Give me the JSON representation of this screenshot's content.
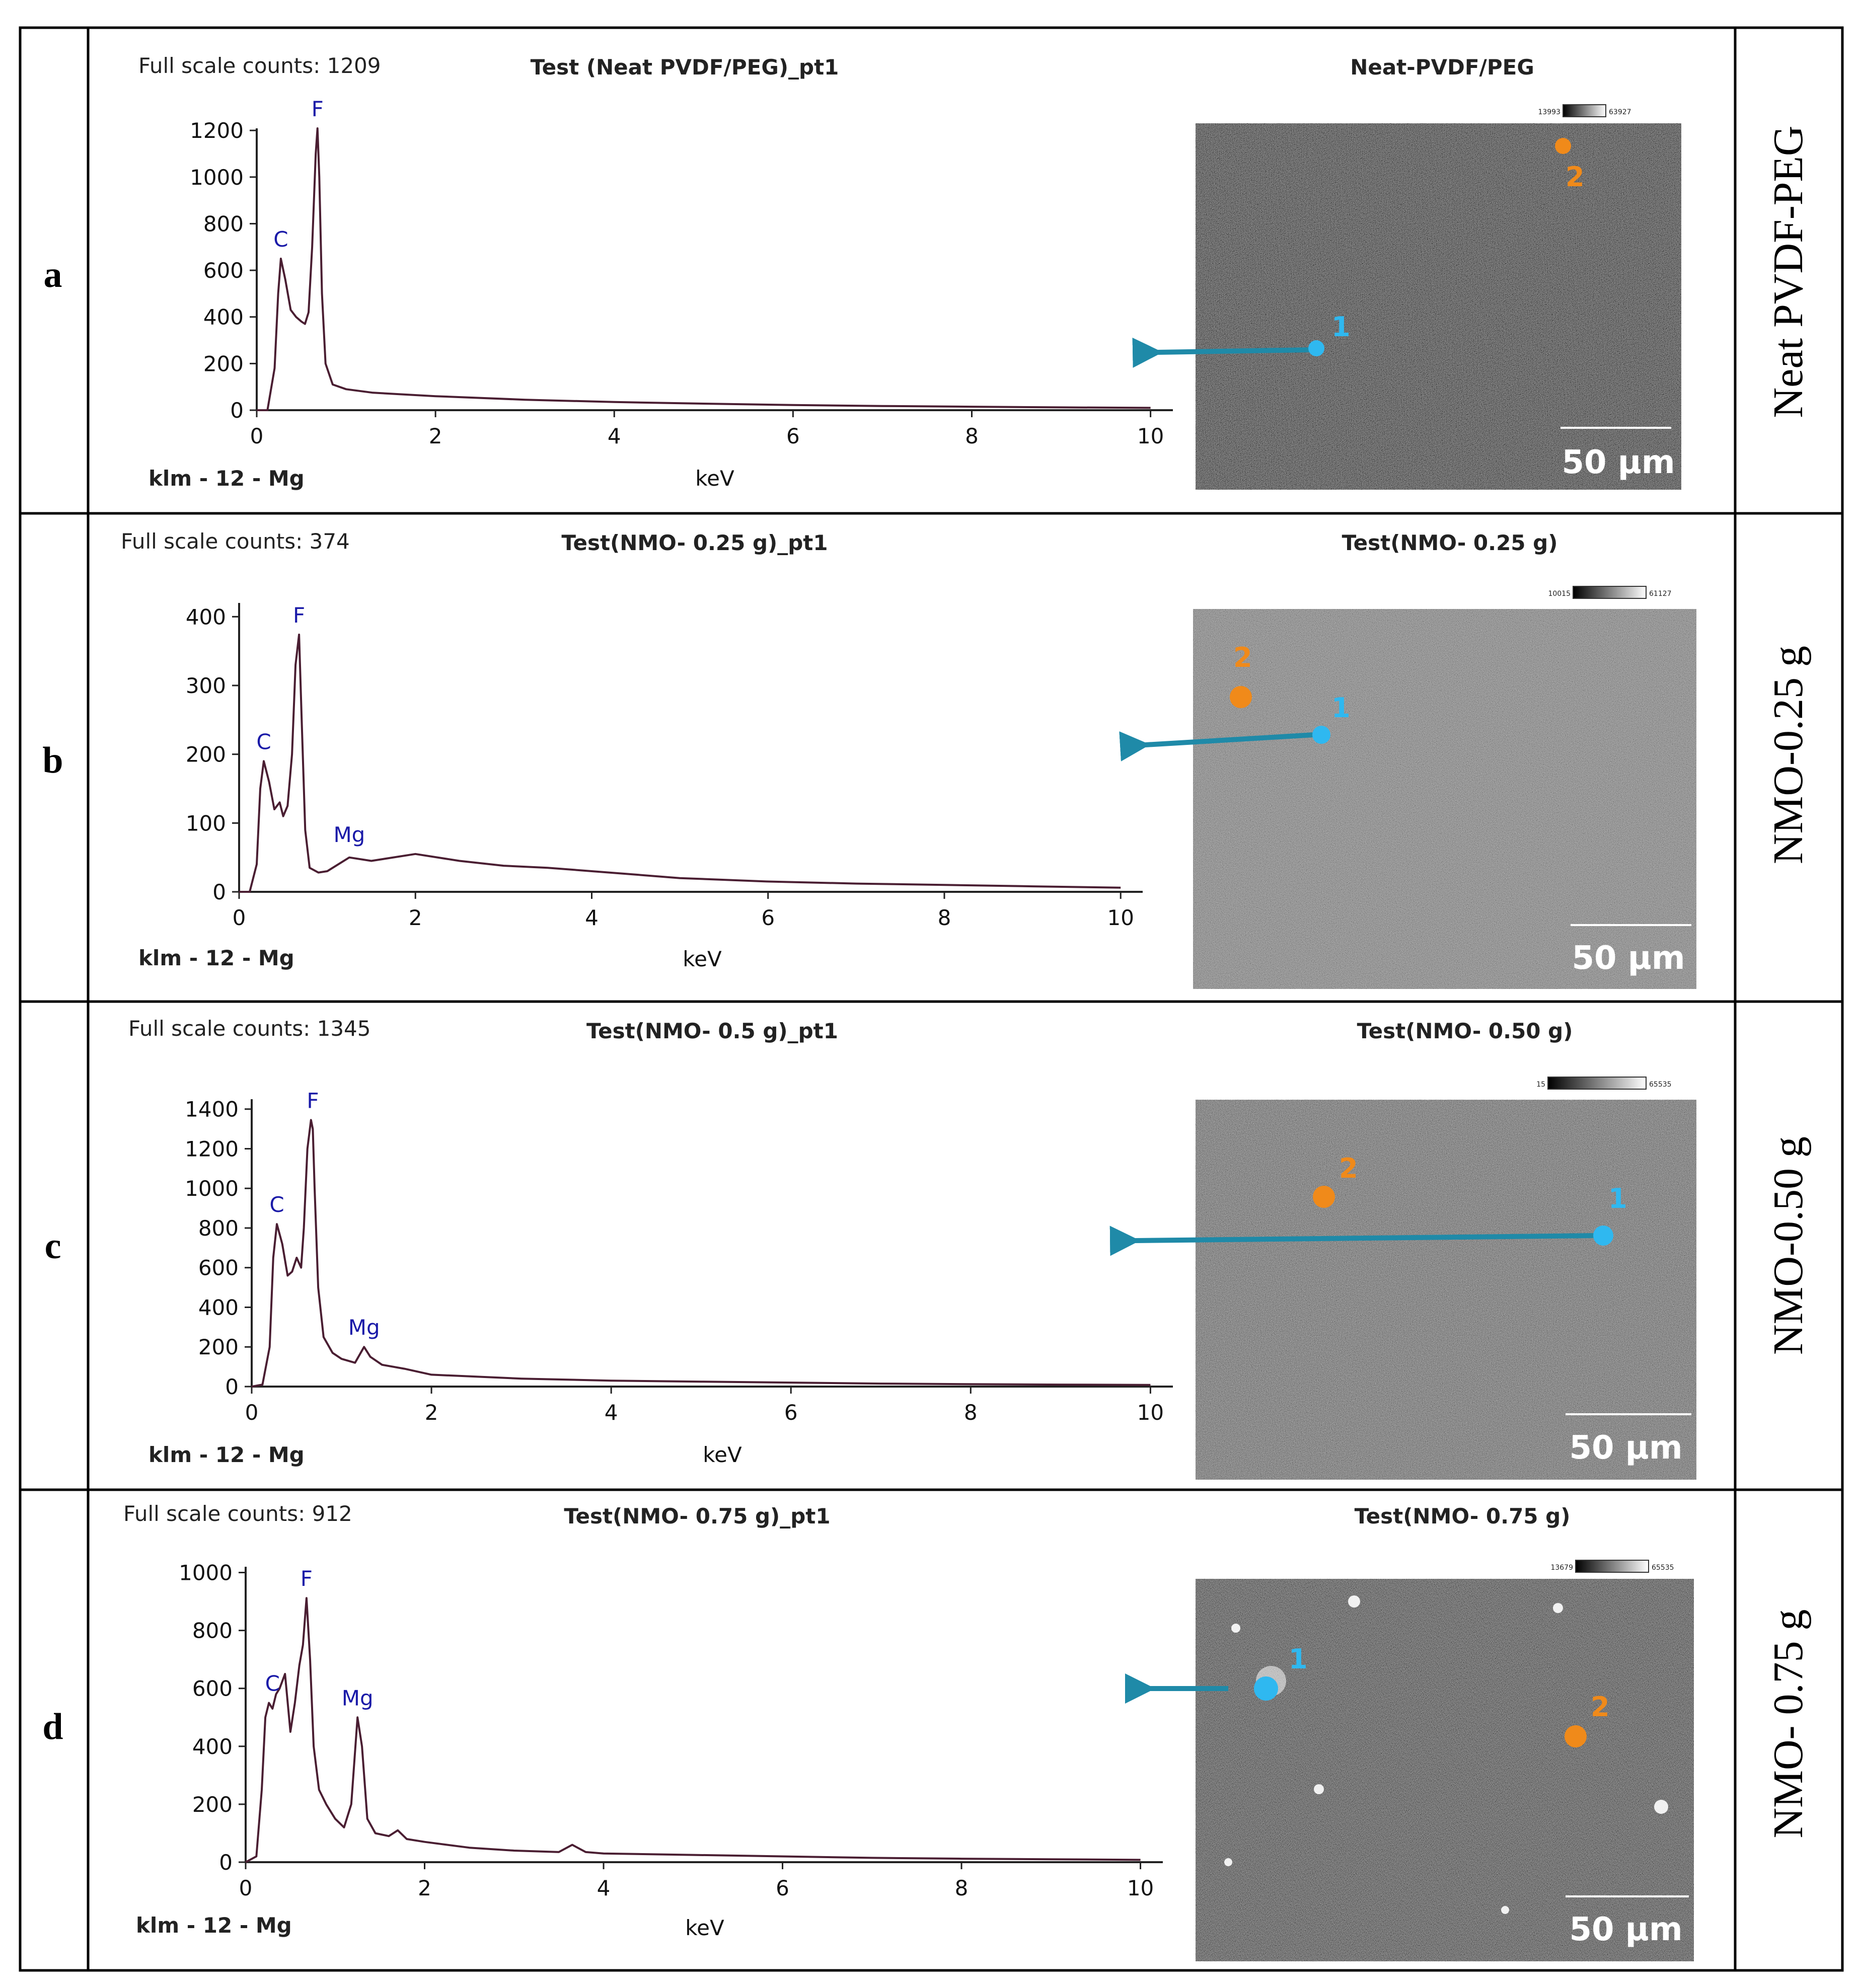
{
  "colors": {
    "spectrum_line": "#4a1e32",
    "axis": "#222222",
    "peak_label": "#1a1aa8",
    "arrow": "#1f8aa8",
    "point1": "#2fb8f0",
    "point2": "#f08a1a"
  },
  "chart_data": [
    {
      "type": "line",
      "row_letter": "a",
      "side_label": "Neat PVDF-PEG",
      "full_scale_counts": "Full scale counts: 1209",
      "test_title": "Test (Neat PVDF/PEG)_pt1",
      "image_title": "Neat-PVDF/PEG",
      "xlabel": "keV",
      "footer": "klm - 12 - Mg",
      "xlim": [
        0,
        10.25
      ],
      "ylim": [
        0,
        1209
      ],
      "x_ticks": [
        "0",
        "2",
        "4",
        "6",
        "8",
        "10"
      ],
      "y_ticks": [
        "0",
        "200",
        "400",
        "600",
        "800",
        "1000",
        "1200"
      ],
      "y_tick_values": [
        0,
        200,
        400,
        600,
        800,
        1000,
        1200
      ],
      "peaks": [
        {
          "label": "C",
          "x": 0.27,
          "y": 650
        },
        {
          "label": "F",
          "x": 0.68,
          "y": 1209
        }
      ],
      "series": [
        {
          "name": "spectrum",
          "x": [
            0,
            0.12,
            0.2,
            0.24,
            0.27,
            0.32,
            0.38,
            0.44,
            0.5,
            0.54,
            0.58,
            0.62,
            0.66,
            0.68,
            0.7,
            0.73,
            0.77,
            0.85,
            1.0,
            1.3,
            2.0,
            3.0,
            4.0,
            5.0,
            6.0,
            7.0,
            8.0,
            9.0,
            10.0
          ],
          "y": [
            0,
            0,
            180,
            500,
            650,
            560,
            430,
            400,
            380,
            370,
            420,
            700,
            1100,
            1209,
            1000,
            500,
            200,
            110,
            90,
            75,
            60,
            45,
            35,
            28,
            22,
            18,
            15,
            12,
            10
          ]
        }
      ],
      "sem": {
        "scale_bar": "50 µm",
        "colorbar_min": "13993",
        "colorbar_max": "63927",
        "points": [
          {
            "label": "1"
          },
          {
            "label": "2"
          }
        ]
      }
    },
    {
      "type": "line",
      "row_letter": "b",
      "side_label": "NMO-0.25 g",
      "full_scale_counts": "Full scale counts: 374",
      "test_title": "Test(NMO- 0.25 g)_pt1",
      "image_title": "Test(NMO- 0.25 g)",
      "xlabel": "keV",
      "footer": "klm - 12 - Mg",
      "xlim": [
        0,
        10.25
      ],
      "ylim": [
        0,
        420
      ],
      "x_ticks": [
        "0",
        "2",
        "4",
        "6",
        "8",
        "10"
      ],
      "y_ticks": [
        "0",
        "100",
        "200",
        "300",
        "400"
      ],
      "y_tick_values": [
        0,
        100,
        200,
        300,
        400
      ],
      "peaks": [
        {
          "label": "C",
          "x": 0.28,
          "y": 190
        },
        {
          "label": "F",
          "x": 0.68,
          "y": 374
        },
        {
          "label": "Mg",
          "x": 1.25,
          "y": 55
        }
      ],
      "series": [
        {
          "name": "spectrum",
          "x": [
            0,
            0.12,
            0.2,
            0.24,
            0.28,
            0.34,
            0.4,
            0.46,
            0.5,
            0.55,
            0.6,
            0.64,
            0.68,
            0.71,
            0.75,
            0.8,
            0.9,
            1.0,
            1.25,
            1.5,
            2.0,
            2.5,
            3.0,
            3.5,
            4.0,
            4.5,
            5.0,
            6.0,
            7.0,
            8.0,
            9.0,
            10.0
          ],
          "y": [
            0,
            0,
            40,
            150,
            190,
            160,
            120,
            130,
            110,
            125,
            200,
            330,
            374,
            250,
            90,
            35,
            28,
            30,
            50,
            45,
            55,
            45,
            38,
            35,
            30,
            25,
            20,
            15,
            12,
            10,
            8,
            6
          ]
        }
      ],
      "sem": {
        "scale_bar": "50 µm",
        "colorbar_min": "10015",
        "colorbar_max": "61127",
        "points": [
          {
            "label": "1"
          },
          {
            "label": "2"
          }
        ]
      }
    },
    {
      "type": "line",
      "row_letter": "c",
      "side_label": "NMO-0.50 g",
      "full_scale_counts": "Full scale counts: 1345",
      "test_title": "Test(NMO- 0.5 g)_pt1",
      "image_title": "Test(NMO- 0.50 g)",
      "xlabel": "keV",
      "footer": "klm - 12 - Mg",
      "xlim": [
        0,
        10.25
      ],
      "ylim": [
        0,
        1450
      ],
      "x_ticks": [
        "0",
        "2",
        "4",
        "6",
        "8",
        "10"
      ],
      "y_ticks": [
        "0",
        "200",
        "400",
        "600",
        "800",
        "1000",
        "1200",
        "1400"
      ],
      "y_tick_values": [
        0,
        200,
        400,
        600,
        800,
        1000,
        1200,
        1400
      ],
      "peaks": [
        {
          "label": "C",
          "x": 0.28,
          "y": 820
        },
        {
          "label": "F",
          "x": 0.68,
          "y": 1345
        },
        {
          "label": "Mg",
          "x": 1.25,
          "y": 200
        }
      ],
      "series": [
        {
          "name": "spectrum",
          "x": [
            0,
            0.12,
            0.2,
            0.24,
            0.28,
            0.34,
            0.4,
            0.45,
            0.5,
            0.55,
            0.58,
            0.62,
            0.66,
            0.68,
            0.7,
            0.74,
            0.8,
            0.9,
            1.0,
            1.15,
            1.25,
            1.32,
            1.45,
            1.7,
            2.0,
            3.0,
            4.0,
            5.0,
            6.0,
            7.0,
            8.0,
            9.0,
            10.0
          ],
          "y": [
            0,
            10,
            200,
            650,
            820,
            720,
            560,
            580,
            650,
            600,
            800,
            1200,
            1345,
            1300,
            1000,
            500,
            250,
            170,
            140,
            120,
            200,
            150,
            110,
            90,
            60,
            40,
            30,
            25,
            20,
            15,
            12,
            10,
            8
          ]
        }
      ],
      "sem": {
        "scale_bar": "50 µm",
        "colorbar_min": "15",
        "colorbar_max": "65535",
        "points": [
          {
            "label": "1"
          },
          {
            "label": "2"
          }
        ]
      }
    },
    {
      "type": "line",
      "row_letter": "d",
      "side_label": "NMO- 0.75 g",
      "full_scale_counts": "Full scale counts: 912",
      "test_title": "Test(NMO- 0.75 g)_pt1",
      "image_title": "Test(NMO- 0.75 g)",
      "xlabel": "keV",
      "footer": "klm - 12 - Mg",
      "xlim": [
        0,
        10.25
      ],
      "ylim": [
        0,
        1020
      ],
      "x_ticks": [
        "0",
        "2",
        "4",
        "6",
        "8",
        "10"
      ],
      "y_ticks": [
        "0",
        "200",
        "400",
        "600",
        "800",
        "1000"
      ],
      "y_tick_values": [
        0,
        200,
        400,
        600,
        800,
        1000
      ],
      "peaks": [
        {
          "label": "C",
          "x": 0.3,
          "y": 550
        },
        {
          "label": "F",
          "x": 0.68,
          "y": 912
        },
        {
          "label": "Mg",
          "x": 1.25,
          "y": 500
        }
      ],
      "series": [
        {
          "name": "spectrum",
          "x": [
            0,
            0.12,
            0.18,
            0.22,
            0.26,
            0.3,
            0.34,
            0.38,
            0.44,
            0.5,
            0.55,
            0.6,
            0.64,
            0.68,
            0.72,
            0.76,
            0.82,
            0.9,
            1.0,
            1.1,
            1.18,
            1.25,
            1.3,
            1.36,
            1.45,
            1.6,
            1.7,
            1.8,
            2.0,
            2.5,
            3.0,
            3.5,
            3.65,
            3.8,
            4.0,
            5.0,
            6.0,
            7.0,
            8.0,
            9.0,
            10.0
          ],
          "y": [
            0,
            20,
            250,
            500,
            550,
            530,
            580,
            600,
            650,
            450,
            550,
            680,
            750,
            912,
            700,
            400,
            250,
            200,
            150,
            120,
            200,
            500,
            400,
            150,
            100,
            90,
            110,
            80,
            70,
            50,
            40,
            35,
            60,
            35,
            30,
            25,
            20,
            15,
            12,
            10,
            8
          ]
        }
      ],
      "sem": {
        "scale_bar": "50 µm",
        "colorbar_min": "13679",
        "colorbar_max": "65535",
        "points": [
          {
            "label": "1"
          },
          {
            "label": "2"
          }
        ]
      }
    }
  ]
}
